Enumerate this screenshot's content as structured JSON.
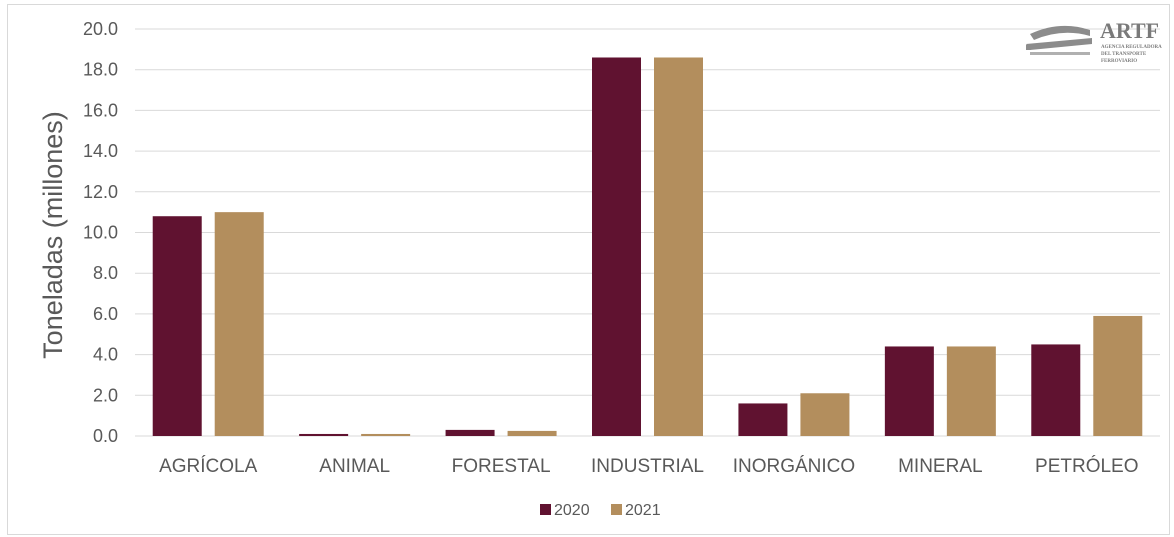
{
  "chart_data": {
    "type": "bar",
    "title": "",
    "xlabel": "",
    "ylabel": "Toneladas (millones)",
    "ylim": [
      0,
      20
    ],
    "yticks": [
      "0.0",
      "2.0",
      "4.0",
      "6.0",
      "8.0",
      "10.0",
      "12.0",
      "14.0",
      "16.0",
      "18.0",
      "20.0"
    ],
    "categories": [
      "AGRÍCOLA",
      "ANIMAL",
      "FORESTAL",
      "INDUSTRIAL",
      "INORGÁNICO",
      "MINERAL",
      "PETRÓLEO"
    ],
    "series": [
      {
        "name": "2020",
        "color": "#601230",
        "values": [
          10.8,
          0.1,
          0.3,
          18.6,
          1.6,
          4.4,
          4.5
        ]
      },
      {
        "name": "2021",
        "color": "#b38e5d",
        "values": [
          11.0,
          0.1,
          0.25,
          18.6,
          2.1,
          4.4,
          5.9
        ]
      }
    ],
    "grid": true,
    "legend": "bottom"
  },
  "logo": {
    "name": "ARTF",
    "subtitle_lines": [
      "AGENCIA REGULADORA",
      "DEL TRANSPORTE",
      "FERROVIARIO"
    ]
  }
}
